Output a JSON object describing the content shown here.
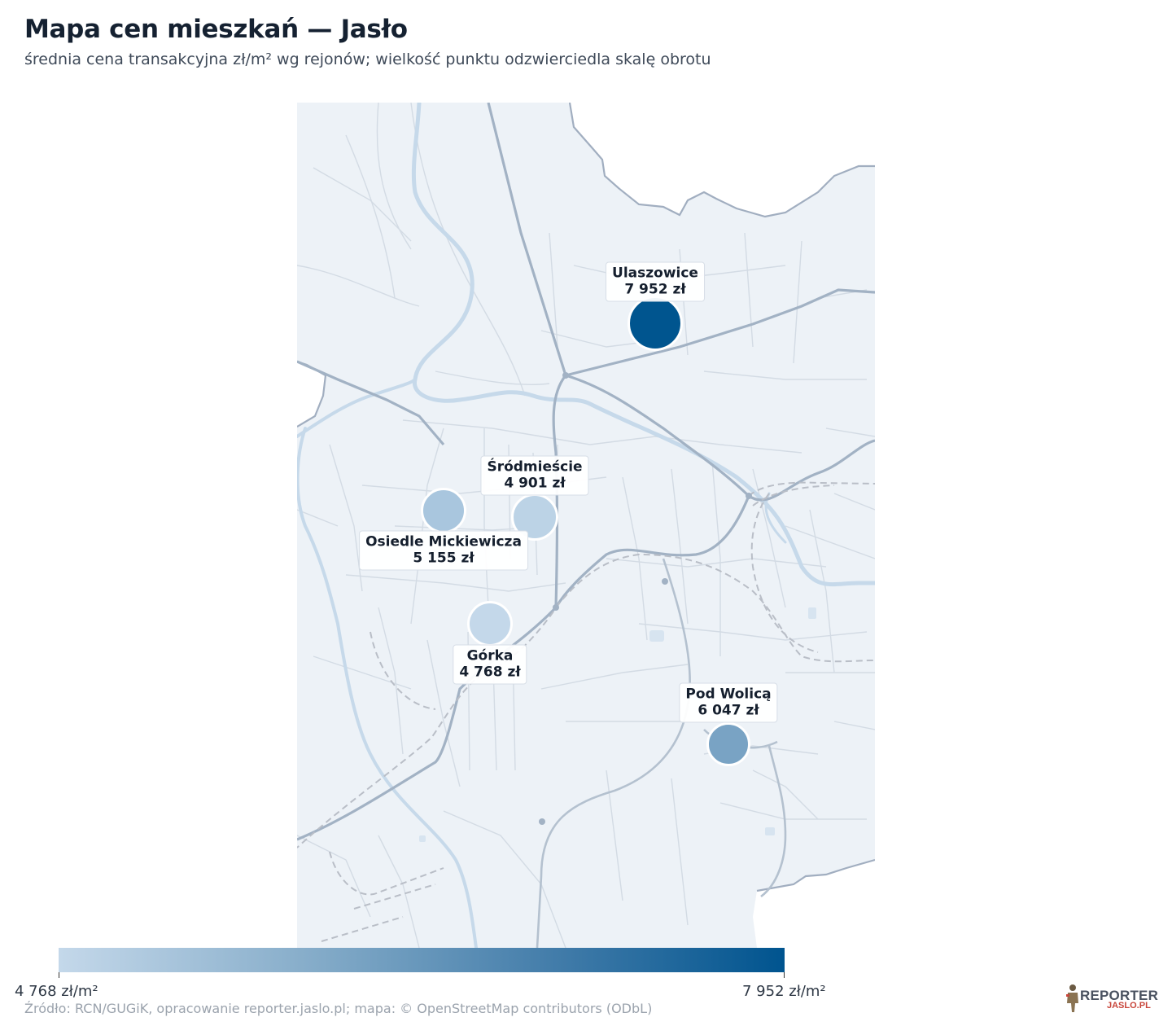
{
  "header": {
    "title": "Mapa cen mieszkań — Jasło",
    "subtitle": "średnia cena transakcyjna zł/m² wg rejonów; wielkość punktu odzwierciedla skalę obrotu"
  },
  "districts": [
    {
      "name": "Ulaszowice",
      "price": "7 952 zł",
      "value": 7952,
      "color": "#00558f"
    },
    {
      "name": "Śródmieście",
      "price": "4 901 zł",
      "value": 4901,
      "color": "#bcd3e6"
    },
    {
      "name": "Osiedle Mickiewicza",
      "price": "5 155 zł",
      "value": 5155,
      "color": "#a9c6de"
    },
    {
      "name": "Górka",
      "price": "4 768 zł",
      "value": 4768,
      "color": "#c4d8ea"
    },
    {
      "name": "Pod Wolicą",
      "price": "6 047 zł",
      "value": 6047,
      "color": "#79a3c4"
    }
  ],
  "legend": {
    "min_label": "4 768 zł/m²",
    "max_label": "7 952 zł/m²",
    "min_color": "#c4d8ea",
    "max_color": "#00548f"
  },
  "footer": {
    "source": "Źródło: RCN/GUGiK, opracowanie reporter.jaslo.pl; mapa: © OpenStreetMap contributors (ODbL)"
  },
  "logo": {
    "word1": "REPORTER",
    "word2": "JASLO.PL"
  }
}
